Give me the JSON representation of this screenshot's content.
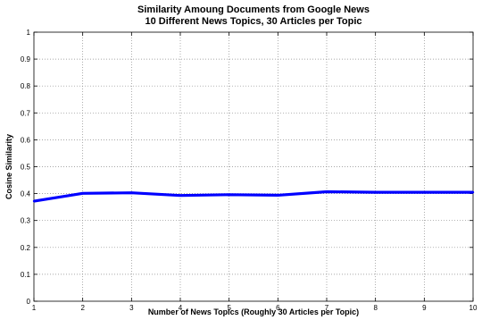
{
  "chart_data": {
    "type": "line",
    "title": [
      "Similarity Amoung Documents from Google News",
      "10 Different News Topics, 30 Articles per Topic"
    ],
    "xlabel": "Number of News Topics (Roughly 30 Articles per Topic)",
    "ylabel": "Cosine Similarity",
    "xlim": [
      1,
      10
    ],
    "ylim": [
      0,
      1
    ],
    "xticks": [
      "1",
      "2",
      "3",
      "4",
      "5",
      "6",
      "7",
      "8",
      "9",
      "10"
    ],
    "yticks": [
      "0",
      "0.1",
      "0.2",
      "0.3",
      "0.4",
      "0.5",
      "0.6",
      "0.7",
      "0.8",
      "0.9",
      "1"
    ],
    "grid": true,
    "series": [
      {
        "color": "#0000ff",
        "x": [
          1,
          2,
          3,
          4,
          5,
          6,
          7,
          8,
          9,
          10
        ],
        "values": [
          0.372,
          0.401,
          0.403,
          0.393,
          0.396,
          0.394,
          0.407,
          0.405,
          0.405,
          0.405
        ]
      }
    ]
  }
}
